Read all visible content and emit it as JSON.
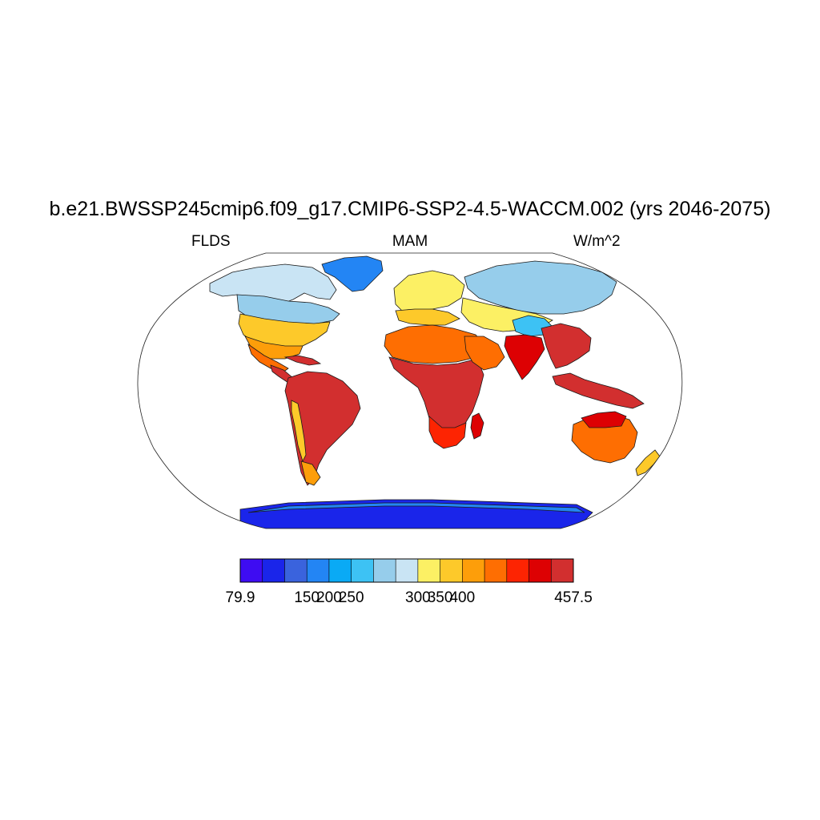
{
  "title": "b.e21.BWSSP245cmip6.f09_g17.CMIP6-SSP2-4.5-WACCM.002 (yrs 2046-2075)",
  "left_label": "FLDS",
  "center_label": "MAM",
  "right_label": "W/m^2",
  "map": {
    "projection": "Robinson",
    "variable": "FLDS",
    "units": "W/m^2",
    "season": "MAM",
    "coastlines": true,
    "ocean_masked": true,
    "ocean_color": "#ffffff",
    "regions": [
      {
        "name": "greenland",
        "level": 3
      },
      {
        "name": "north-america-arctic",
        "level": 7
      },
      {
        "name": "canada",
        "level": 6
      },
      {
        "name": "usa",
        "level": 9
      },
      {
        "name": "southern-usa",
        "level": 10
      },
      {
        "name": "mexico",
        "level": 11
      },
      {
        "name": "central-america",
        "level": 14
      },
      {
        "name": "caribbean",
        "level": 14
      },
      {
        "name": "south-america",
        "level": 14
      },
      {
        "name": "andes",
        "level": 9
      },
      {
        "name": "patagonia",
        "level": 10
      },
      {
        "name": "europe",
        "level": 8
      },
      {
        "name": "southern-europe",
        "level": 9
      },
      {
        "name": "siberia",
        "level": 6
      },
      {
        "name": "central-asia",
        "level": 8
      },
      {
        "name": "tibetan-plateau",
        "level": 5
      },
      {
        "name": "sahara",
        "level": 11
      },
      {
        "name": "sub-saharan-africa",
        "level": 14
      },
      {
        "name": "southern-africa",
        "level": 12
      },
      {
        "name": "madagascar",
        "level": 13
      },
      {
        "name": "arabia",
        "level": 11
      },
      {
        "name": "india",
        "level": 13
      },
      {
        "name": "southeast-asia",
        "level": 14
      },
      {
        "name": "maritime-continent",
        "level": 14
      },
      {
        "name": "australia",
        "level": 11
      },
      {
        "name": "northern-australia",
        "level": 13
      },
      {
        "name": "new-zealand",
        "level": 9
      },
      {
        "name": "antarctica",
        "level": 1
      },
      {
        "name": "antarctic-coast",
        "level": 3
      }
    ]
  },
  "colorbar": {
    "min_label": "79.9",
    "max_label": "457.5",
    "tick_labels": [
      "150",
      "200",
      "250",
      "300",
      "350",
      "400"
    ],
    "colors": [
      "#3e0cf2",
      "#1a25ea",
      "#3a63dd",
      "#2385f4",
      "#0aaaf5",
      "#3dc2f4",
      "#96cdeb",
      "#c9e4f4",
      "#fcf064",
      "#fdc92a",
      "#fd9e0a",
      "#fe6e02",
      "#fd2402",
      "#dd0103",
      "#d22f2f"
    ]
  }
}
